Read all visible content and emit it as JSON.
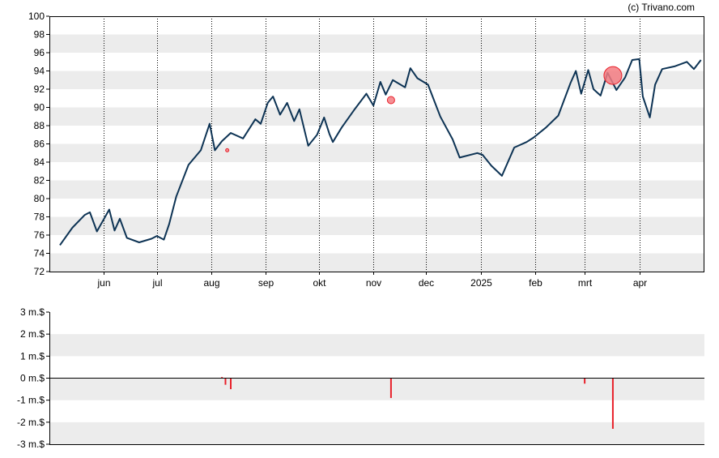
{
  "copyright": "(c) Trivano.com",
  "colors": {
    "line": "#0d3354",
    "event": "#e8202a",
    "event_fill": "#f37b81",
    "band": "#ececec",
    "axis": "#000000"
  },
  "chart_data": [
    {
      "type": "line",
      "title": "",
      "xlabel": "",
      "ylabel": "",
      "ylim": [
        72,
        100
      ],
      "y_ticks": [
        "100",
        "98",
        "96",
        "94",
        "92",
        "90",
        "88",
        "86",
        "84",
        "82",
        "80",
        "78",
        "76",
        "74",
        "72"
      ],
      "x_ticks": [
        "jun",
        "jul",
        "aug",
        "sep",
        "okt",
        "nov",
        "dec",
        "2025",
        "feb",
        "mrt",
        "apr"
      ],
      "grid": "vertical dotted lines at month starts; alternating horizontal bands",
      "series": [
        {
          "x": [
            "2024-05-07",
            "2024-05-14",
            "2024-05-21",
            "2024-05-24",
            "2024-05-28",
            "2024-06-04",
            "2024-06-07",
            "2024-06-10",
            "2024-06-14",
            "2024-06-21",
            "2024-06-28",
            "2024-07-01",
            "2024-07-05",
            "2024-07-08",
            "2024-07-12",
            "2024-07-19",
            "2024-07-26",
            "2024-07-31",
            "2024-08-03",
            "2024-08-07",
            "2024-08-12",
            "2024-08-19",
            "2024-08-26",
            "2024-08-29",
            "2024-09-02",
            "2024-09-05",
            "2024-09-09",
            "2024-09-13",
            "2024-09-17",
            "2024-09-20",
            "2024-09-25",
            "2024-09-30",
            "2024-10-04",
            "2024-10-07",
            "2024-10-09",
            "2024-10-14",
            "2024-10-21",
            "2024-10-28",
            "2024-11-01",
            "2024-11-05",
            "2024-11-08",
            "2024-11-12",
            "2024-11-19",
            "2024-11-22",
            "2024-11-26",
            "2024-12-02",
            "2024-12-09",
            "2024-12-16",
            "2024-12-20",
            "2024-12-30",
            "2025-01-02",
            "2025-01-07",
            "2025-01-13",
            "2025-01-20",
            "2025-01-27",
            "2025-01-31",
            "2025-02-07",
            "2025-02-14",
            "2025-02-21",
            "2025-02-24",
            "2025-02-27",
            "2025-03-03",
            "2025-03-06",
            "2025-03-10",
            "2025-03-14",
            "2025-03-19",
            "2025-03-24",
            "2025-03-28",
            "2025-04-01",
            "2025-04-03",
            "2025-04-07",
            "2025-04-10",
            "2025-04-14",
            "2025-04-21",
            "2025-04-28",
            "2025-05-02",
            "2025-05-06"
          ],
          "y": [
            74.9,
            76.8,
            78.2,
            78.5,
            76.4,
            78.8,
            76.5,
            77.8,
            75.7,
            75.2,
            75.6,
            75.9,
            75.5,
            77.2,
            80.2,
            83.7,
            85.3,
            88.2,
            85.3,
            86.3,
            87.2,
            86.6,
            88.7,
            88.2,
            90.5,
            91.2,
            89.2,
            90.5,
            88.5,
            89.8,
            85.8,
            87.0,
            88.9,
            87.1,
            86.2,
            87.8,
            89.7,
            91.5,
            90.2,
            92.8,
            91.4,
            93.0,
            92.2,
            94.3,
            93.2,
            92.5,
            89.0,
            86.5,
            84.5,
            85.0,
            84.8,
            83.6,
            82.5,
            85.6,
            86.2,
            86.7,
            87.8,
            89.1,
            92.7,
            94.0,
            91.5,
            94.1,
            92.0,
            91.3,
            93.8,
            91.9,
            93.3,
            95.2,
            95.3,
            91.2,
            88.9,
            92.5,
            94.2,
            94.5,
            95.0,
            94.2,
            95.2
          ]
        }
      ],
      "markers": [
        {
          "x": "2024-08-10",
          "y": 85.3,
          "size": "small"
        },
        {
          "x": "2024-11-11",
          "y": 90.8,
          "size": "medium"
        },
        {
          "x": "2025-03-17",
          "y": 93.5,
          "size": "large"
        }
      ]
    },
    {
      "type": "bar",
      "title": "",
      "xlabel": "",
      "ylabel": "",
      "ylim": [
        -3,
        3
      ],
      "y_ticks": [
        "3 m.$",
        "2 m.$",
        "1 m.$",
        "0 m.$",
        "-1 m.$",
        "-2 m.$",
        "-3 m.$"
      ],
      "series": [
        {
          "x": [
            "2024-08-07",
            "2024-08-09",
            "2024-08-12",
            "2024-11-11",
            "2025-03-01",
            "2025-03-17"
          ],
          "values": [
            0.05,
            -0.3,
            -0.5,
            -0.9,
            -0.25,
            -2.3
          ]
        }
      ]
    }
  ]
}
